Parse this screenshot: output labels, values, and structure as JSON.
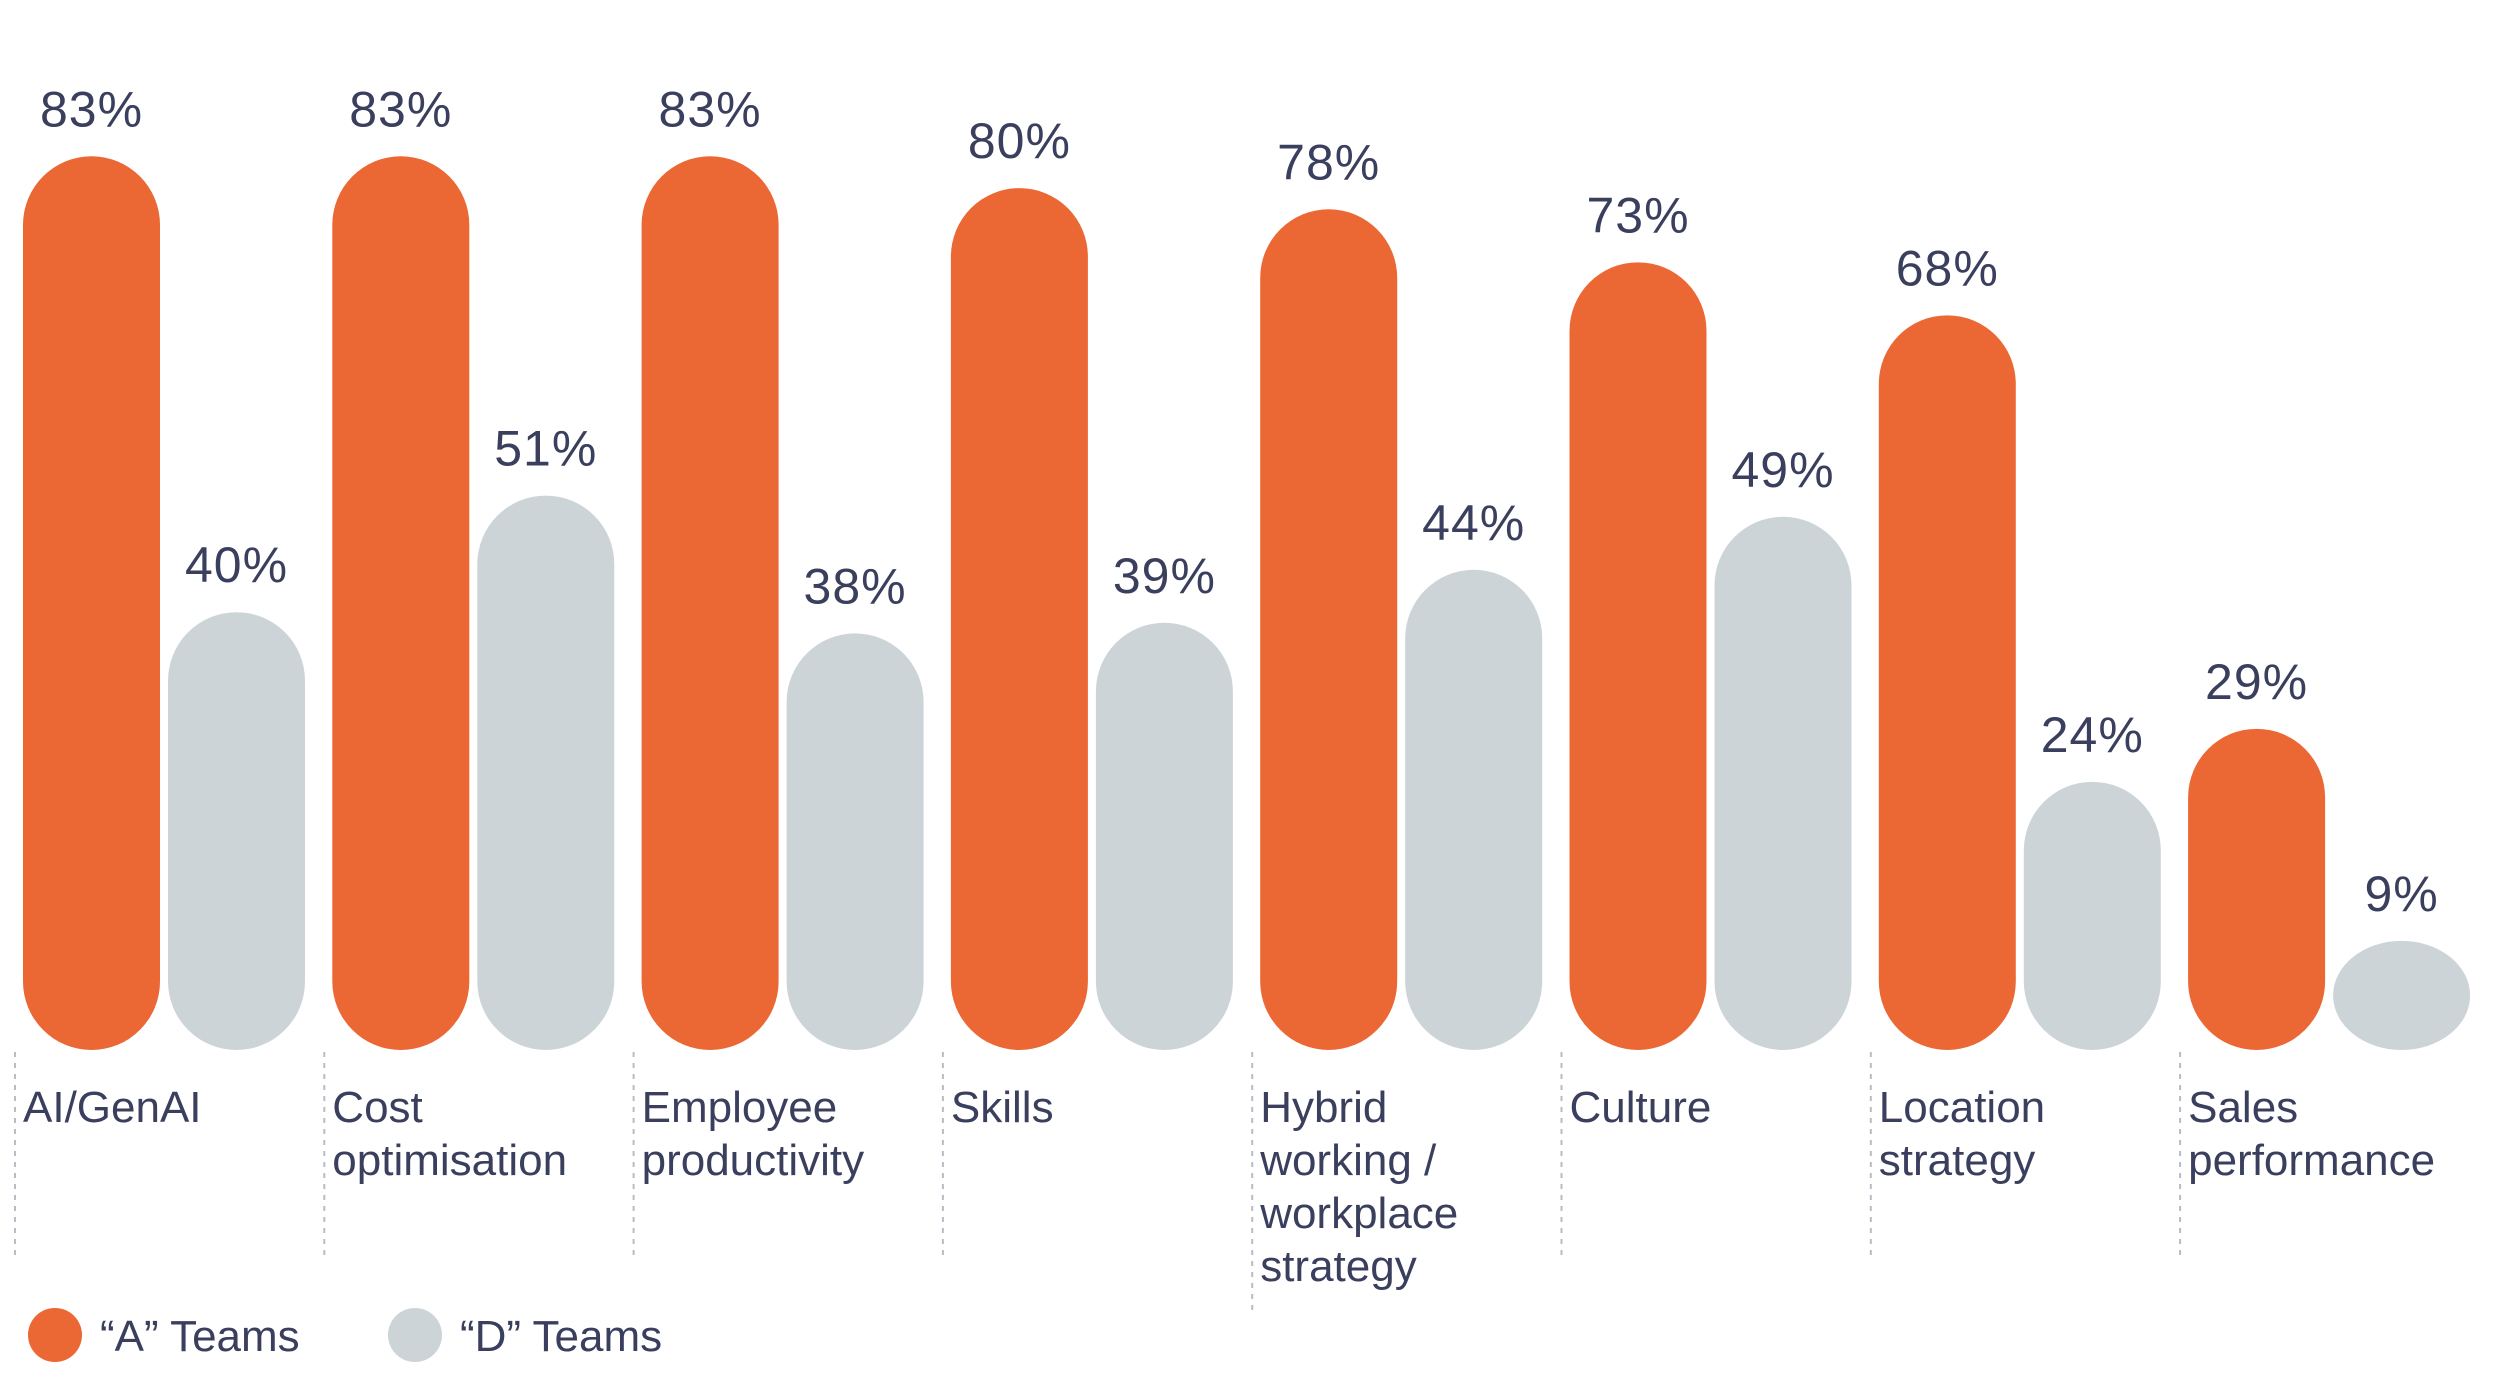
{
  "chart_data": {
    "type": "bar",
    "title": "",
    "xlabel": "",
    "ylabel": "",
    "ylim": [
      0,
      83
    ],
    "categories": [
      [
        "AI/GenAI"
      ],
      [
        "Cost",
        "optimisation"
      ],
      [
        "Employee",
        "productivity"
      ],
      [
        "Skills"
      ],
      [
        "Hybrid",
        "working /",
        "workplace",
        "strategy"
      ],
      [
        "Culture"
      ],
      [
        "Location",
        "strategy"
      ],
      [
        "Sales",
        "performance"
      ]
    ],
    "series": [
      {
        "name": "“A” Teams",
        "color": "#EB6733",
        "values": [
          83,
          83,
          83,
          80,
          78,
          73,
          68,
          29
        ],
        "labels": [
          "83%",
          "83%",
          "83%",
          "80%",
          "78%",
          "73%",
          "68%",
          "29%"
        ]
      },
      {
        "name": "“D” Teams",
        "color": "#CDD4D8",
        "values": [
          40,
          51,
          38,
          39,
          44,
          49,
          24,
          9
        ],
        "labels": [
          "40%",
          "51%",
          "38%",
          "39%",
          "44%",
          "49%",
          "24%",
          "9%"
        ]
      }
    ],
    "legend": {
      "position": "bottom-left"
    }
  }
}
